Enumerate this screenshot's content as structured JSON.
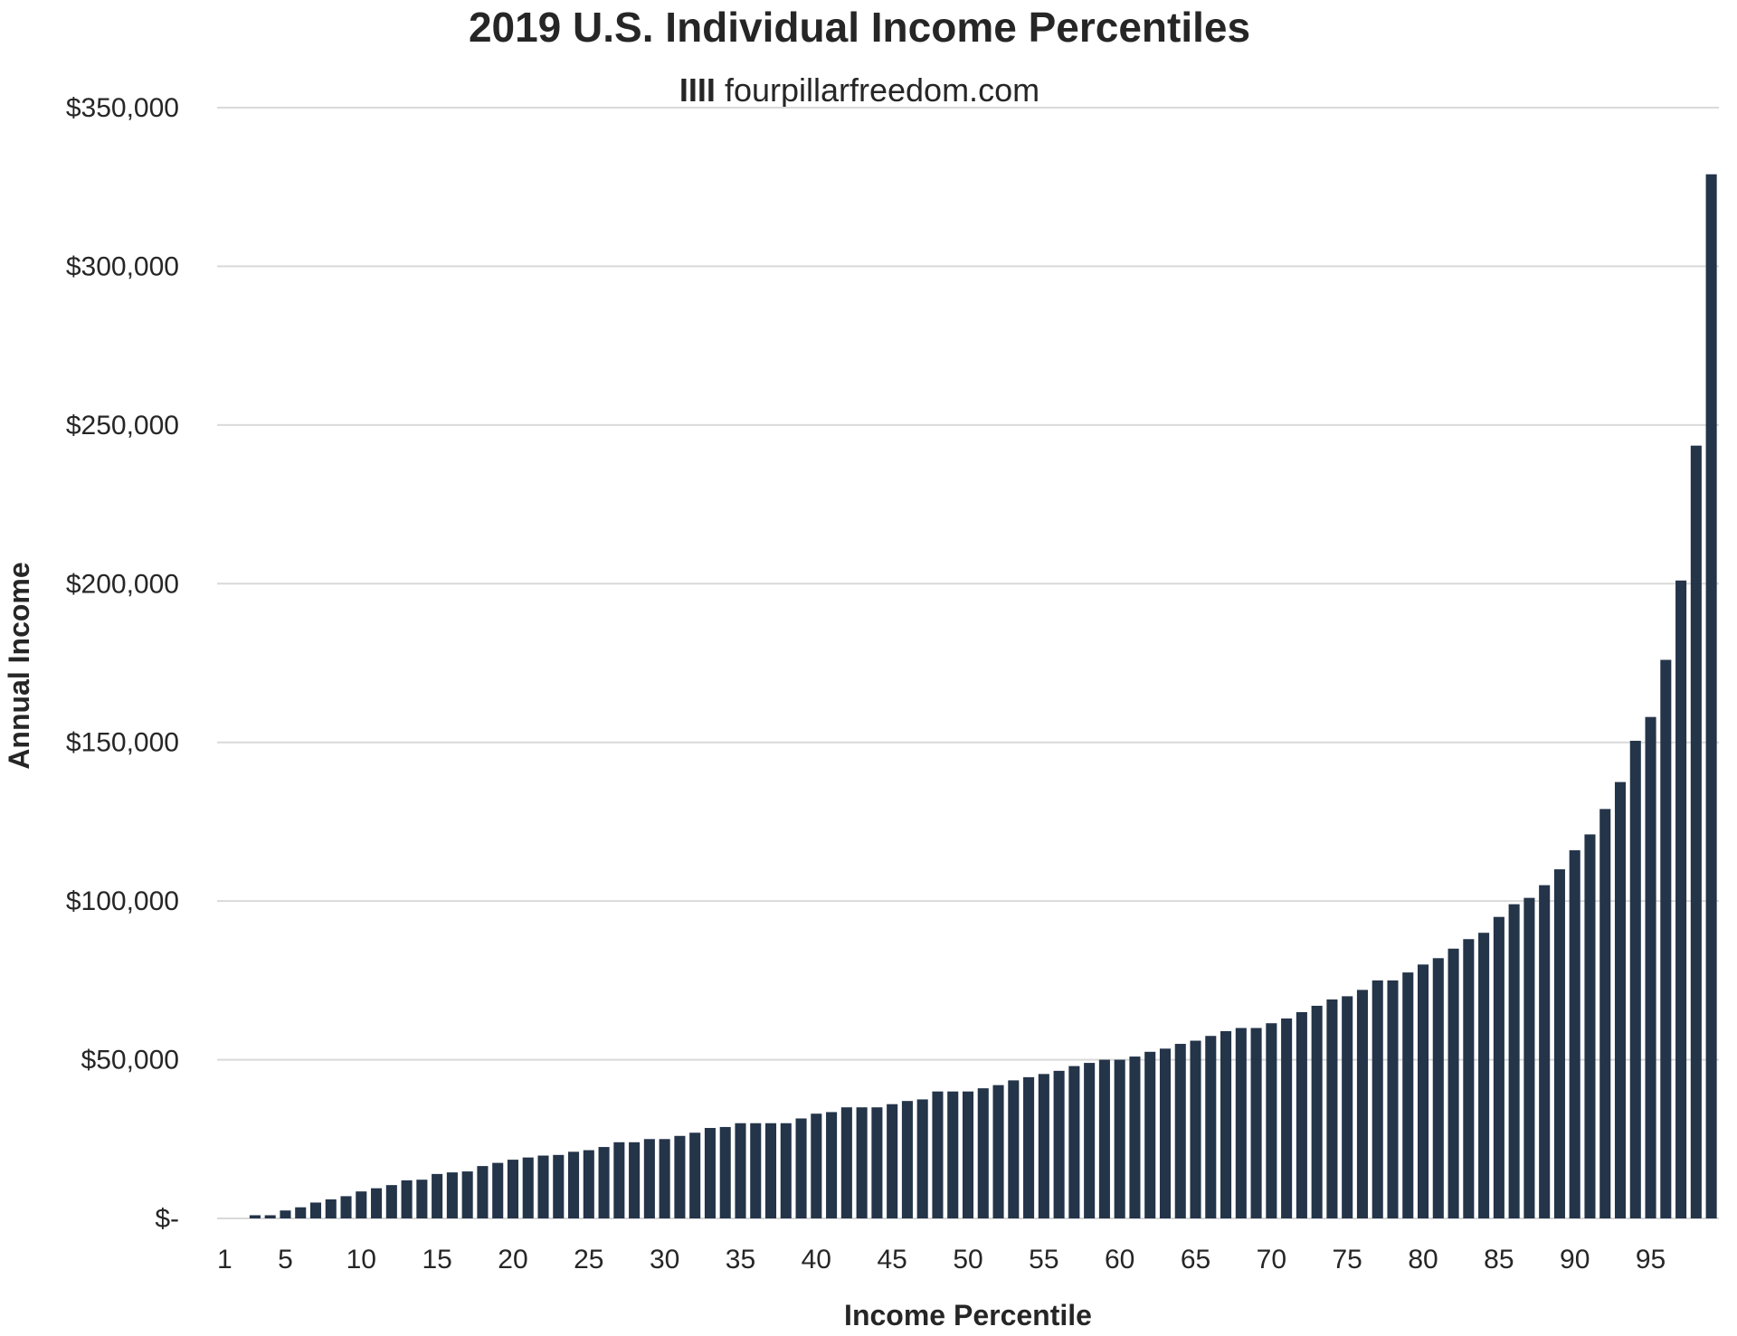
{
  "chart_data": {
    "type": "bar",
    "title": "2019 U.S. Individual Income Percentiles",
    "subtitle_mark": "IIII",
    "subtitle": "fourpillarfreedom.com",
    "xlabel": "Income Percentile",
    "ylabel": "Annual Income",
    "ylim": [
      0,
      350000
    ],
    "y_ticks": [
      {
        "value": 0,
        "label": "$-"
      },
      {
        "value": 50000,
        "label": "$50,000"
      },
      {
        "value": 100000,
        "label": "$100,000"
      },
      {
        "value": 150000,
        "label": "$150,000"
      },
      {
        "value": 200000,
        "label": "$200,000"
      },
      {
        "value": 250000,
        "label": "$250,000"
      },
      {
        "value": 300000,
        "label": "$300,000"
      },
      {
        "value": 350000,
        "label": "$350,000"
      }
    ],
    "x_tick_labels": [
      1,
      5,
      10,
      15,
      20,
      25,
      30,
      35,
      40,
      45,
      50,
      55,
      60,
      65,
      70,
      75,
      80,
      85,
      90,
      95
    ],
    "grid": true,
    "series": [
      {
        "name": "Annual Income",
        "color": "#243449",
        "categories": [
          1,
          2,
          3,
          4,
          5,
          6,
          7,
          8,
          9,
          10,
          11,
          12,
          13,
          14,
          15,
          16,
          17,
          18,
          19,
          20,
          21,
          22,
          23,
          24,
          25,
          26,
          27,
          28,
          29,
          30,
          31,
          32,
          33,
          34,
          35,
          36,
          37,
          38,
          39,
          40,
          41,
          42,
          43,
          44,
          45,
          46,
          47,
          48,
          49,
          50,
          51,
          52,
          53,
          54,
          55,
          56,
          57,
          58,
          59,
          60,
          61,
          62,
          63,
          64,
          65,
          66,
          67,
          68,
          69,
          70,
          71,
          72,
          73,
          74,
          75,
          76,
          77,
          78,
          79,
          80,
          81,
          82,
          83,
          84,
          85,
          86,
          87,
          88,
          89,
          90,
          91,
          92,
          93,
          94,
          95,
          96,
          97,
          98,
          99
        ],
        "values": [
          0,
          0,
          1000,
          1000,
          2500,
          3500,
          5000,
          6000,
          7000,
          8500,
          9500,
          10500,
          12000,
          12200,
          14000,
          14500,
          14800,
          16500,
          17500,
          18500,
          19200,
          19800,
          20000,
          21000,
          21500,
          22500,
          24000,
          24000,
          25000,
          25000,
          26000,
          27000,
          28500,
          28800,
          30000,
          30000,
          30000,
          30000,
          31500,
          33000,
          33500,
          35000,
          35000,
          35000,
          36000,
          37000,
          37500,
          40000,
          40000,
          40000,
          41000,
          42000,
          43500,
          44500,
          45500,
          46500,
          48000,
          49000,
          50000,
          50000,
          51000,
          52500,
          53500,
          55000,
          56000,
          57500,
          59000,
          60000,
          60000,
          61500,
          63000,
          65000,
          67000,
          69000,
          70000,
          72000,
          75000,
          75000,
          77500,
          80000,
          82000,
          85000,
          88000,
          90000,
          95000,
          99000,
          101000,
          105000,
          110000,
          116000,
          121000,
          129000,
          137500,
          150500,
          158000,
          176000,
          201000,
          243500,
          329000
        ]
      }
    ]
  }
}
